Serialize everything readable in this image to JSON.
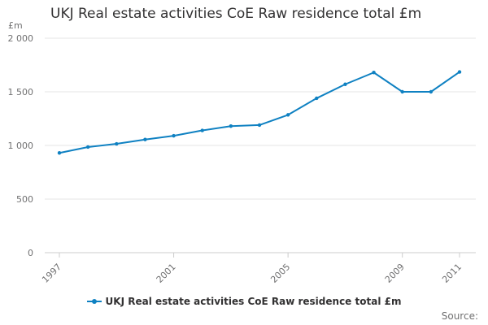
{
  "colors": {
    "series": "#0f81c2",
    "grid": "#e6e6e6",
    "axis_text": "#707071",
    "title": "#323132"
  },
  "chart_data": {
    "type": "line",
    "title": "UKJ Real estate activities CoE Raw residence total £m",
    "ylabel": "£m",
    "xlabel": "",
    "ylim": [
      0,
      2000
    ],
    "y_ticks": [
      {
        "value": 0,
        "label": "0"
      },
      {
        "value": 500,
        "label": "500"
      },
      {
        "value": 1000,
        "label": "1 000"
      },
      {
        "value": 1500,
        "label": "1 500"
      },
      {
        "value": 2000,
        "label": "2 000"
      }
    ],
    "x_range": [
      1997,
      2011
    ],
    "x_ticks": [
      {
        "value": 1997,
        "label": "1997"
      },
      {
        "value": 2001,
        "label": "2001"
      },
      {
        "value": 2005,
        "label": "2005"
      },
      {
        "value": 2009,
        "label": "2009"
      },
      {
        "value": 2011,
        "label": "2011"
      }
    ],
    "grid": true,
    "legend_position": "bottom",
    "series": [
      {
        "name": "UKJ Real estate activities CoE Raw residence total £m",
        "x": [
          1997,
          1998,
          1999,
          2000,
          2001,
          2002,
          2003,
          2004,
          2005,
          2006,
          2007,
          2008,
          2009,
          2010,
          2011
        ],
        "values": [
          930,
          985,
          1015,
          1055,
          1090,
          1140,
          1180,
          1190,
          1285,
          1440,
          1570,
          1680,
          1500,
          1500,
          1685
        ]
      }
    ]
  },
  "source": {
    "label": "Source:"
  }
}
